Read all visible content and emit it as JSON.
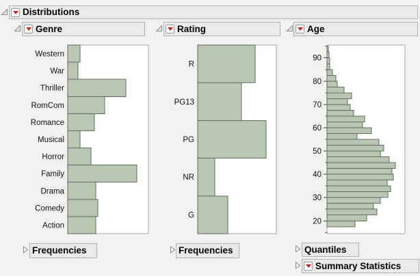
{
  "app": {
    "heading": "Distributions"
  },
  "panels": [
    {
      "title": "Genre",
      "footer_label": "Frequencies"
    },
    {
      "title": "Rating",
      "footer_label": "Frequencies"
    },
    {
      "title": "Age",
      "footer1_label": "Quantiles",
      "footer2_label": "Summary Statistics"
    }
  ],
  "colors": {
    "background": "#f1f1ef",
    "header_fill": "#eaeae8",
    "header_border": "#b0b0ae",
    "frame_border": "#a6a6a4",
    "bar_fill": "#b9c7b3",
    "bar_stroke": "#60695c",
    "menu_red": "#cc2128",
    "tick": "#444444"
  },
  "chart_data": [
    {
      "type": "bar",
      "orientation": "horizontal",
      "title": "Genre",
      "categories": [
        "Western",
        "War",
        "Thriller",
        "RomCom",
        "Romance",
        "Musical",
        "Horror",
        "Family",
        "Drama",
        "Comedy",
        "Action"
      ],
      "rel_lengths": [
        0.15,
        0.13,
        0.72,
        0.46,
        0.33,
        0.15,
        0.29,
        0.86,
        0.35,
        0.37,
        0.35
      ],
      "note": "bar lengths are fractions of plot-frame width; no frequency axis shown"
    },
    {
      "type": "bar",
      "orientation": "horizontal",
      "title": "Rating",
      "categories": [
        "R",
        "PG13",
        "PG",
        "NR",
        "G"
      ],
      "rel_lengths": [
        0.73,
        0.56,
        0.87,
        0.22,
        0.38
      ],
      "note": "bar lengths are fractions of plot-frame width; no frequency axis shown"
    },
    {
      "type": "histogram",
      "orientation": "horizontal",
      "title": "Age",
      "axis": {
        "min": 14.5,
        "max": 95.5,
        "major_ticks": [
          20,
          30,
          40,
          50,
          60,
          70,
          80,
          90
        ],
        "minor_tick_step": 5
      },
      "bin_width": 2.5,
      "bins": [
        {
          "start": 17.5,
          "rel": 0.36
        },
        {
          "start": 20,
          "rel": 0.51
        },
        {
          "start": 22.5,
          "rel": 0.64
        },
        {
          "start": 25,
          "rel": 0.6
        },
        {
          "start": 27.5,
          "rel": 0.68
        },
        {
          "start": 30,
          "rel": 0.78
        },
        {
          "start": 32.5,
          "rel": 0.82
        },
        {
          "start": 35,
          "rel": 0.77
        },
        {
          "start": 37.5,
          "rel": 0.85
        },
        {
          "start": 40,
          "rel": 0.83
        },
        {
          "start": 42.5,
          "rel": 0.88
        },
        {
          "start": 45,
          "rel": 0.8
        },
        {
          "start": 47.5,
          "rel": 0.68
        },
        {
          "start": 50,
          "rel": 0.73
        },
        {
          "start": 52.5,
          "rel": 0.67
        },
        {
          "start": 55,
          "rel": 0.39
        },
        {
          "start": 57.5,
          "rel": 0.57
        },
        {
          "start": 60,
          "rel": 0.46
        },
        {
          "start": 62.5,
          "rel": 0.48
        },
        {
          "start": 65,
          "rel": 0.34
        },
        {
          "start": 67.5,
          "rel": 0.3
        },
        {
          "start": 70,
          "rel": 0.26
        },
        {
          "start": 72.5,
          "rel": 0.32
        },
        {
          "start": 75,
          "rel": 0.22
        },
        {
          "start": 77.5,
          "rel": 0.13
        },
        {
          "start": 80,
          "rel": 0.11
        },
        {
          "start": 82.5,
          "rel": 0.07
        },
        {
          "start": 85,
          "rel": 0.035
        },
        {
          "start": 87.5,
          "rel": 0.035
        },
        {
          "start": 90,
          "rel": 0.026
        },
        {
          "start": 92.5,
          "rel": 0.018
        }
      ],
      "note": "bin lengths are fractions of plot-frame width; no frequency axis shown"
    }
  ]
}
